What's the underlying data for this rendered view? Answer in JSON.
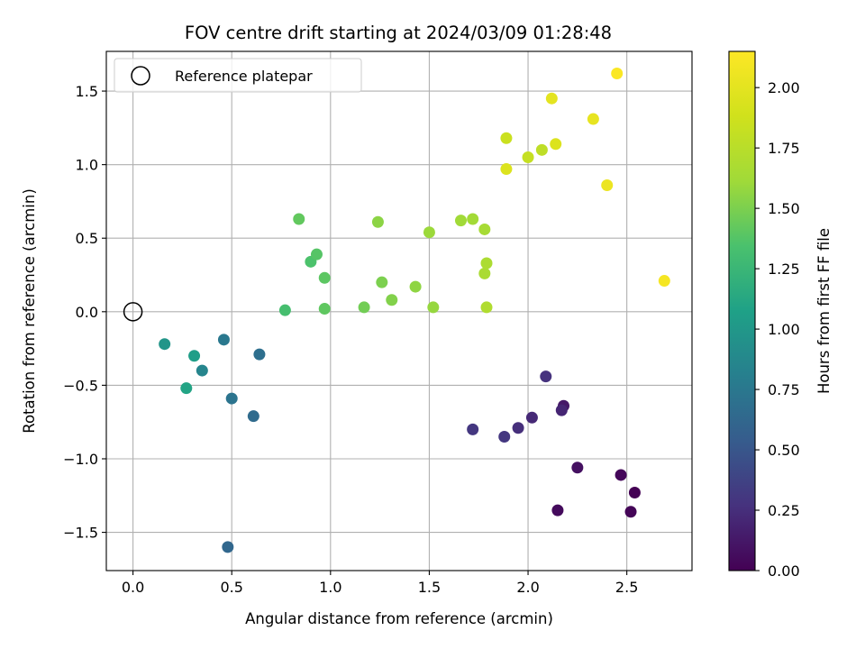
{
  "chart_data": {
    "type": "scatter",
    "title": "FOV centre drift starting at 2024/03/09 01:28:48",
    "xlabel": "Angular distance from reference (arcmin)",
    "ylabel": "Rotation from reference (arcmin)",
    "xlim": [
      -0.135,
      2.83
    ],
    "ylim": [
      -1.76,
      1.77
    ],
    "xticks": [
      0.0,
      0.5,
      1.0,
      1.5,
      2.0,
      2.5
    ],
    "xtick_labels": [
      "0.0",
      "0.5",
      "1.0",
      "1.5",
      "2.0",
      "2.5"
    ],
    "yticks": [
      -1.5,
      -1.0,
      -0.5,
      0.0,
      0.5,
      1.0,
      1.5
    ],
    "ytick_labels": [
      "−1.5",
      "−1.0",
      "−0.5",
      "0.0",
      "0.5",
      "1.0",
      "1.5"
    ],
    "grid": true,
    "legend": {
      "placement": "top-left",
      "entries": [
        "Reference platepar"
      ]
    },
    "reference_point": {
      "x": 0.0,
      "y": 0.0,
      "marker": "open-circle",
      "color": "#000000"
    },
    "colorbar": {
      "label": "Hours from first FF file",
      "colormap": "viridis",
      "range": [
        0.0,
        2.15
      ],
      "ticks": [
        0.0,
        0.25,
        0.5,
        0.75,
        1.0,
        1.25,
        1.5,
        1.75,
        2.0
      ],
      "tick_labels": [
        "0.00",
        "0.25",
        "0.50",
        "0.75",
        "1.00",
        "1.25",
        "1.50",
        "1.75",
        "2.00"
      ]
    },
    "points": [
      {
        "x": 2.54,
        "y": -1.23,
        "c": 0.0
      },
      {
        "x": 2.52,
        "y": -1.36,
        "c": 0.02
      },
      {
        "x": 2.47,
        "y": -1.11,
        "c": 0.03
      },
      {
        "x": 2.15,
        "y": -1.35,
        "c": 0.05
      },
      {
        "x": 2.25,
        "y": -1.06,
        "c": 0.08
      },
      {
        "x": 2.18,
        "y": -0.64,
        "c": 0.12
      },
      {
        "x": 2.17,
        "y": -0.67,
        "c": 0.2
      },
      {
        "x": 2.02,
        "y": -0.72,
        "c": 0.22
      },
      {
        "x": 1.95,
        "y": -0.79,
        "c": 0.25
      },
      {
        "x": 2.09,
        "y": -0.44,
        "c": 0.27
      },
      {
        "x": 1.88,
        "y": -0.85,
        "c": 0.3
      },
      {
        "x": 1.72,
        "y": -0.8,
        "c": 0.3
      },
      {
        "x": 0.48,
        "y": -1.6,
        "c": 0.62
      },
      {
        "x": 0.61,
        "y": -0.71,
        "c": 0.65
      },
      {
        "x": 0.64,
        "y": -0.29,
        "c": 0.68
      },
      {
        "x": 0.5,
        "y": -0.59,
        "c": 0.72
      },
      {
        "x": 0.46,
        "y": -0.19,
        "c": 0.75
      },
      {
        "x": 0.35,
        "y": -0.4,
        "c": 0.85
      },
      {
        "x": 0.16,
        "y": -0.22,
        "c": 0.98
      },
      {
        "x": 0.31,
        "y": -0.3,
        "c": 1.05
      },
      {
        "x": 0.27,
        "y": -0.52,
        "c": 1.1
      },
      {
        "x": 0.77,
        "y": 0.01,
        "c": 1.32
      },
      {
        "x": 0.9,
        "y": 0.34,
        "c": 1.35
      },
      {
        "x": 0.93,
        "y": 0.39,
        "c": 1.38
      },
      {
        "x": 0.97,
        "y": 0.23,
        "c": 1.4
      },
      {
        "x": 0.97,
        "y": 0.02,
        "c": 1.41
      },
      {
        "x": 0.84,
        "y": 0.63,
        "c": 1.42
      },
      {
        "x": 1.17,
        "y": 0.03,
        "c": 1.47
      },
      {
        "x": 1.26,
        "y": 0.2,
        "c": 1.5
      },
      {
        "x": 1.31,
        "y": 0.08,
        "c": 1.52
      },
      {
        "x": 1.24,
        "y": 0.61,
        "c": 1.55
      },
      {
        "x": 1.43,
        "y": 0.17,
        "c": 1.56
      },
      {
        "x": 1.52,
        "y": 0.03,
        "c": 1.58
      },
      {
        "x": 1.5,
        "y": 0.54,
        "c": 1.6
      },
      {
        "x": 1.66,
        "y": 0.62,
        "c": 1.62
      },
      {
        "x": 1.72,
        "y": 0.63,
        "c": 1.63
      },
      {
        "x": 1.78,
        "y": 0.56,
        "c": 1.65
      },
      {
        "x": 1.78,
        "y": 0.26,
        "c": 1.67
      },
      {
        "x": 1.79,
        "y": 0.33,
        "c": 1.68
      },
      {
        "x": 1.79,
        "y": 0.03,
        "c": 1.7
      },
      {
        "x": 2.07,
        "y": 1.1,
        "c": 1.78
      },
      {
        "x": 2.0,
        "y": 1.05,
        "c": 1.82
      },
      {
        "x": 1.89,
        "y": 1.18,
        "c": 1.85
      },
      {
        "x": 2.14,
        "y": 1.14,
        "c": 1.95
      },
      {
        "x": 1.89,
        "y": 0.97,
        "c": 1.95
      },
      {
        "x": 2.12,
        "y": 1.45,
        "c": 2.0
      },
      {
        "x": 2.33,
        "y": 1.31,
        "c": 2.02
      },
      {
        "x": 2.4,
        "y": 0.86,
        "c": 2.05
      },
      {
        "x": 2.69,
        "y": 0.21,
        "c": 2.1
      },
      {
        "x": 2.45,
        "y": 1.62,
        "c": 2.13
      }
    ]
  }
}
